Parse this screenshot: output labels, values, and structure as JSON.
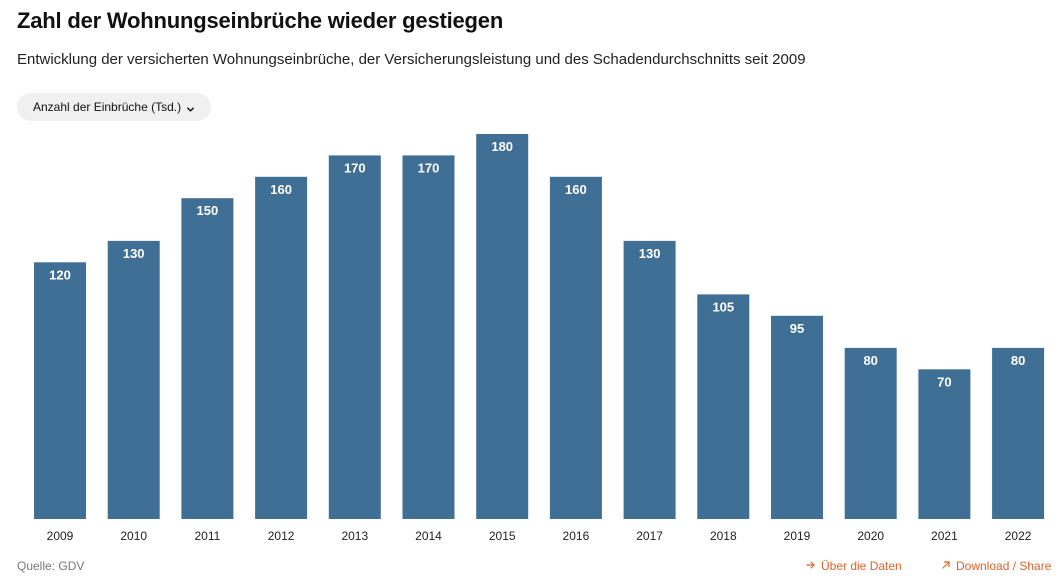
{
  "header": {
    "title": "Zahl der Wohnungseinbrüche wieder gestiegen",
    "subtitle": "Entwicklung der versicherten Wohnungseinbrüche, der Versicherungsleistung und des Schadendurchschnitts seit 2009"
  },
  "controls": {
    "metric_selector": "Anzahl der Einbrüche (Tsd.)"
  },
  "footer": {
    "source": "Quelle: GDV",
    "about_link": "Über die Daten",
    "download_link": "Download / Share"
  },
  "colors": {
    "bar": "#3f6f95",
    "bar_label": "#ffffff",
    "axis_label": "#222222",
    "link": "#e0622a"
  },
  "chart_data": {
    "type": "bar",
    "categories": [
      "2009",
      "2010",
      "2011",
      "2012",
      "2013",
      "2014",
      "2015",
      "2016",
      "2017",
      "2018",
      "2019",
      "2020",
      "2021",
      "2022"
    ],
    "values": [
      120,
      130,
      150,
      160,
      170,
      170,
      180,
      160,
      130,
      105,
      95,
      80,
      70,
      80
    ],
    "title": "Zahl der Wohnungseinbrüche wieder gestiegen",
    "xlabel": "",
    "ylabel": "",
    "ylim": [
      0,
      180
    ],
    "grid": false,
    "legend": "none",
    "data_labels": true
  }
}
